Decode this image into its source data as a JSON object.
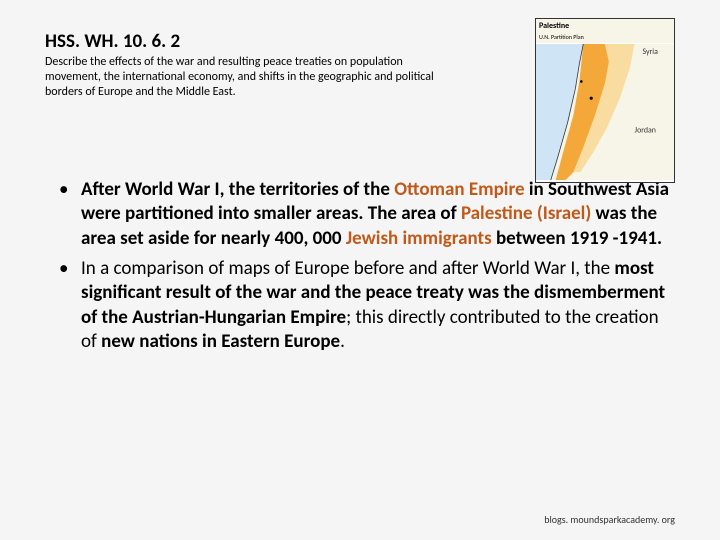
{
  "heading": "HSS. WH. 10. 6. 2",
  "subheading": "Describe the effects of the war and resulting peace treaties on population movement, the international economy, and shifts in the geographic and political borders of Europe and the Middle East.",
  "map": {
    "title": "Palestine",
    "subtitle": "U.N. Partition Plan",
    "labels": {
      "syria": "Syria",
      "jordan": "Jordan"
    },
    "colors": {
      "sea": "#cfe4f5",
      "land_bg": "#f7f5e8",
      "partition_a": "#f4a83a",
      "partition_b": "#f9dca0",
      "border": "#333333",
      "city_dot": "#000000"
    }
  },
  "bullets": [
    {
      "segments": [
        {
          "t": "After World War I, the territories of the ",
          "cls": "hlb"
        },
        {
          "t": "Ottoman Empire",
          "cls": "hl"
        },
        {
          "t": " in Southwest Asia were partitioned into smaller areas. The area of ",
          "cls": "hlb"
        },
        {
          "t": "Palestine (Israel)",
          "cls": "hl"
        },
        {
          "t": " was the area set aside for nearly 400, 000 ",
          "cls": "hlb"
        },
        {
          "t": "Jewish immigrants",
          "cls": "hl"
        },
        {
          "t": " between 1919 -1941.",
          "cls": "hlb"
        }
      ]
    },
    {
      "segments": [
        {
          "t": "In a comparison of maps of Europe before and after World War I, the ",
          "cls": ""
        },
        {
          "t": "most significant result of the war and the peace treaty was the dismemberment of the Austrian-Hungarian Empire",
          "cls": "hlb"
        },
        {
          "t": "; this directly contributed to the creation of ",
          "cls": ""
        },
        {
          "t": "new nations in Eastern Europe",
          "cls": "hlb"
        },
        {
          "t": ".",
          "cls": ""
        }
      ]
    }
  ],
  "footer": "blogs. moundsparkacademy. org",
  "layout": {
    "heading_fontsize": 19,
    "subheading_fontsize": 12,
    "bullet_fontsize": 19,
    "footer_fontsize": 10,
    "text_color": "#000000",
    "highlight_color": "#c05a1a",
    "background": "#f5f5f5"
  }
}
